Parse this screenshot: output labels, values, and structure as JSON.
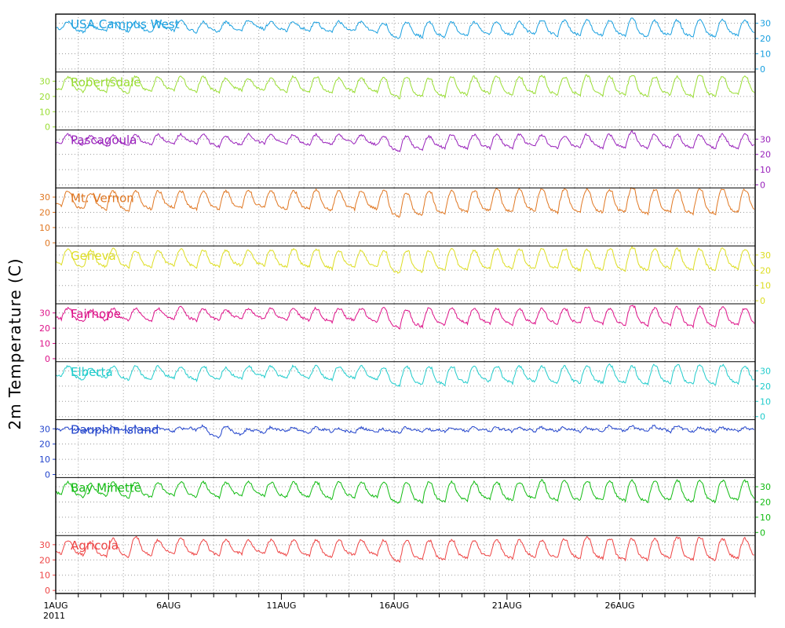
{
  "chart_data": {
    "type": "line",
    "title": "",
    "ylabel": "2m Temperature (C)",
    "xlabel": "",
    "x_tick_labels": [
      {
        "day": 1,
        "label": "1AUG",
        "sublabel": "2011"
      },
      {
        "day": 6,
        "label": "6AUG"
      },
      {
        "day": 11,
        "label": "11AUG"
      },
      {
        "day": 16,
        "label": "16AUG"
      },
      {
        "day": 21,
        "label": "21AUG"
      },
      {
        "day": 26,
        "label": "26AUG"
      }
    ],
    "xlim_days": [
      1,
      32
    ],
    "ylim": [
      -2,
      36
    ],
    "yticks": [
      0,
      10,
      20,
      30
    ],
    "grid": true,
    "series": [
      {
        "name": "USA Campus West",
        "color": "#1aa0e0",
        "tick_side": "right",
        "daily_max": [
          31,
          29,
          31,
          31,
          31,
          32,
          31,
          31,
          32,
          31,
          31,
          31,
          31,
          31,
          30,
          31,
          31,
          31,
          31,
          31,
          31,
          32,
          32,
          32,
          32,
          33,
          32,
          32,
          32,
          32,
          32
        ],
        "daily_min": [
          26,
          24,
          25,
          24,
          24,
          25,
          24,
          24,
          25,
          26,
          25,
          25,
          24,
          25,
          24,
          20,
          21,
          21,
          22,
          23,
          22,
          23,
          22,
          22,
          22,
          22,
          21,
          22,
          21,
          21,
          22
        ]
      },
      {
        "name": "Robertsdale",
        "color": "#99dd33",
        "tick_side": "left",
        "daily_max": [
          33,
          32,
          33,
          33,
          33,
          33,
          33,
          32,
          32,
          32,
          33,
          33,
          32,
          32,
          32,
          33,
          32,
          33,
          33,
          33,
          33,
          34,
          33,
          34,
          33,
          34,
          33,
          33,
          34,
          33,
          33
        ],
        "daily_min": [
          24,
          23,
          23,
          22,
          23,
          24,
          23,
          23,
          24,
          24,
          23,
          23,
          22,
          23,
          23,
          19,
          20,
          20,
          21,
          22,
          21,
          22,
          21,
          21,
          21,
          21,
          20,
          21,
          20,
          20,
          21
        ]
      },
      {
        "name": "Pascagoula",
        "color": "#9922bb",
        "tick_side": "right",
        "daily_max": [
          33,
          32,
          33,
          33,
          33,
          33,
          33,
          32,
          33,
          33,
          33,
          33,
          33,
          33,
          32,
          32,
          32,
          33,
          33,
          33,
          33,
          33,
          32,
          33,
          33,
          35,
          33,
          33,
          33,
          33,
          33
        ],
        "daily_min": [
          27,
          26,
          26,
          26,
          26,
          27,
          27,
          25,
          26,
          27,
          27,
          26,
          26,
          27,
          26,
          22,
          23,
          24,
          24,
          24,
          24,
          25,
          24,
          24,
          24,
          24,
          24,
          24,
          24,
          24,
          24
        ]
      },
      {
        "name": "Mt. Vernon",
        "color": "#e07722",
        "tick_side": "left",
        "daily_max": [
          34,
          33,
          34,
          34,
          34,
          34,
          34,
          34,
          34,
          34,
          34,
          35,
          34,
          34,
          34,
          33,
          34,
          34,
          34,
          35,
          35,
          35,
          35,
          35,
          35,
          36,
          35,
          35,
          35,
          35,
          35
        ],
        "daily_min": [
          24,
          22,
          22,
          21,
          22,
          23,
          22,
          22,
          23,
          23,
          22,
          22,
          21,
          22,
          22,
          17,
          18,
          19,
          20,
          21,
          20,
          21,
          20,
          20,
          20,
          20,
          19,
          20,
          19,
          19,
          20
        ]
      },
      {
        "name": "Geneva",
        "color": "#dddd22",
        "tick_side": "right",
        "daily_max": [
          34,
          33,
          34,
          33,
          33,
          34,
          33,
          33,
          33,
          33,
          34,
          34,
          33,
          33,
          33,
          33,
          33,
          34,
          33,
          34,
          34,
          34,
          34,
          34,
          34,
          35,
          34,
          34,
          34,
          34,
          34
        ],
        "daily_min": [
          24,
          22,
          22,
          22,
          22,
          23,
          22,
          22,
          23,
          23,
          22,
          22,
          21,
          22,
          22,
          18,
          19,
          20,
          20,
          21,
          21,
          21,
          21,
          20,
          20,
          20,
          20,
          21,
          20,
          20,
          21
        ]
      },
      {
        "name": "Fairhope",
        "color": "#dd1188",
        "tick_side": "left",
        "daily_max": [
          33,
          32,
          33,
          33,
          33,
          34,
          33,
          32,
          33,
          33,
          33,
          33,
          33,
          33,
          33,
          32,
          33,
          33,
          33,
          33,
          33,
          33,
          33,
          34,
          33,
          35,
          33,
          34,
          34,
          34,
          33
        ],
        "daily_min": [
          26,
          24,
          25,
          25,
          25,
          26,
          25,
          25,
          26,
          26,
          25,
          25,
          24,
          25,
          24,
          20,
          21,
          22,
          23,
          23,
          22,
          23,
          23,
          23,
          23,
          22,
          22,
          22,
          21,
          21,
          22
        ]
      },
      {
        "name": "Elberta",
        "color": "#22cccc",
        "tick_side": "right",
        "daily_max": [
          33,
          32,
          33,
          33,
          33,
          33,
          33,
          32,
          33,
          33,
          33,
          33,
          33,
          33,
          32,
          33,
          33,
          33,
          33,
          33,
          33,
          33,
          33,
          33,
          34,
          33,
          34,
          34,
          34,
          34,
          33
        ],
        "daily_min": [
          26,
          24,
          25,
          24,
          24,
          25,
          24,
          24,
          25,
          26,
          25,
          25,
          24,
          25,
          24,
          20,
          21,
          21,
          22,
          23,
          22,
          23,
          22,
          22,
          22,
          22,
          21,
          22,
          21,
          21,
          22
        ]
      },
      {
        "name": "Dauphin Island",
        "color": "#2244cc",
        "tick_side": "left",
        "daily_max": [
          31,
          30,
          31,
          31,
          31,
          31,
          32,
          32,
          30,
          31,
          31,
          31,
          30,
          31,
          30,
          31,
          30,
          31,
          31,
          31,
          31,
          31,
          31,
          31,
          32,
          32,
          32,
          32,
          31,
          31,
          31
        ],
        "daily_min": [
          29,
          28,
          28,
          28,
          28,
          28,
          29,
          24,
          26,
          27,
          28,
          27,
          28,
          27,
          28,
          27,
          28,
          28,
          28,
          28,
          28,
          28,
          28,
          28,
          28,
          28,
          28,
          28,
          28,
          28,
          28
        ]
      },
      {
        "name": "Bay Minette",
        "color": "#11bb11",
        "tick_side": "right",
        "daily_max": [
          33,
          32,
          33,
          33,
          33,
          33,
          33,
          33,
          33,
          33,
          33,
          33,
          33,
          33,
          33,
          33,
          33,
          33,
          33,
          33,
          33,
          34,
          34,
          34,
          34,
          34,
          34,
          34,
          34,
          34,
          34
        ],
        "daily_min": [
          25,
          23,
          24,
          23,
          23,
          24,
          23,
          23,
          24,
          24,
          23,
          23,
          22,
          23,
          23,
          19,
          20,
          20,
          21,
          22,
          21,
          22,
          21,
          21,
          21,
          21,
          20,
          21,
          20,
          20,
          21
        ]
      },
      {
        "name": "Agricola",
        "color": "#ee4444",
        "tick_side": "left",
        "daily_max": [
          33,
          32,
          34,
          35,
          33,
          34,
          33,
          33,
          33,
          33,
          33,
          33,
          33,
          33,
          33,
          33,
          33,
          33,
          33,
          33,
          33,
          33,
          34,
          35,
          34,
          34,
          34,
          35,
          35,
          34,
          34
        ],
        "daily_min": [
          24,
          23,
          22,
          22,
          23,
          24,
          23,
          23,
          24,
          24,
          23,
          23,
          22,
          23,
          23,
          19,
          20,
          20,
          21,
          22,
          21,
          22,
          21,
          21,
          21,
          20,
          20,
          21,
          20,
          20,
          21
        ]
      }
    ]
  }
}
